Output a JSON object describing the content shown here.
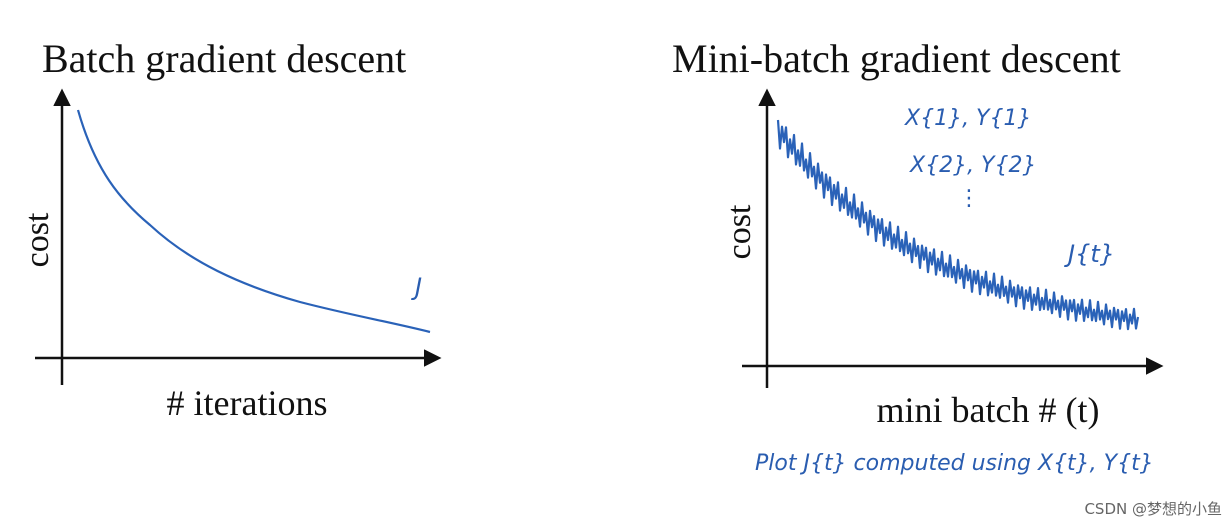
{
  "left_panel": {
    "title": "Batch gradient descent",
    "y_label": "cost",
    "x_label": "# iterations",
    "curve_label": "J"
  },
  "right_panel": {
    "title": "Mini-batch gradient descent",
    "y_label": "cost",
    "x_label": "mini batch # (t)",
    "curve_label": "J{t}",
    "annotations": [
      "X{1}, Y{1}",
      "X{2}, Y{2}",
      "⋮"
    ]
  },
  "footer_note": "Plot J{t} computed using X{t}, Y{t}",
  "watermark": "CSDN @梦想的小鱼"
}
